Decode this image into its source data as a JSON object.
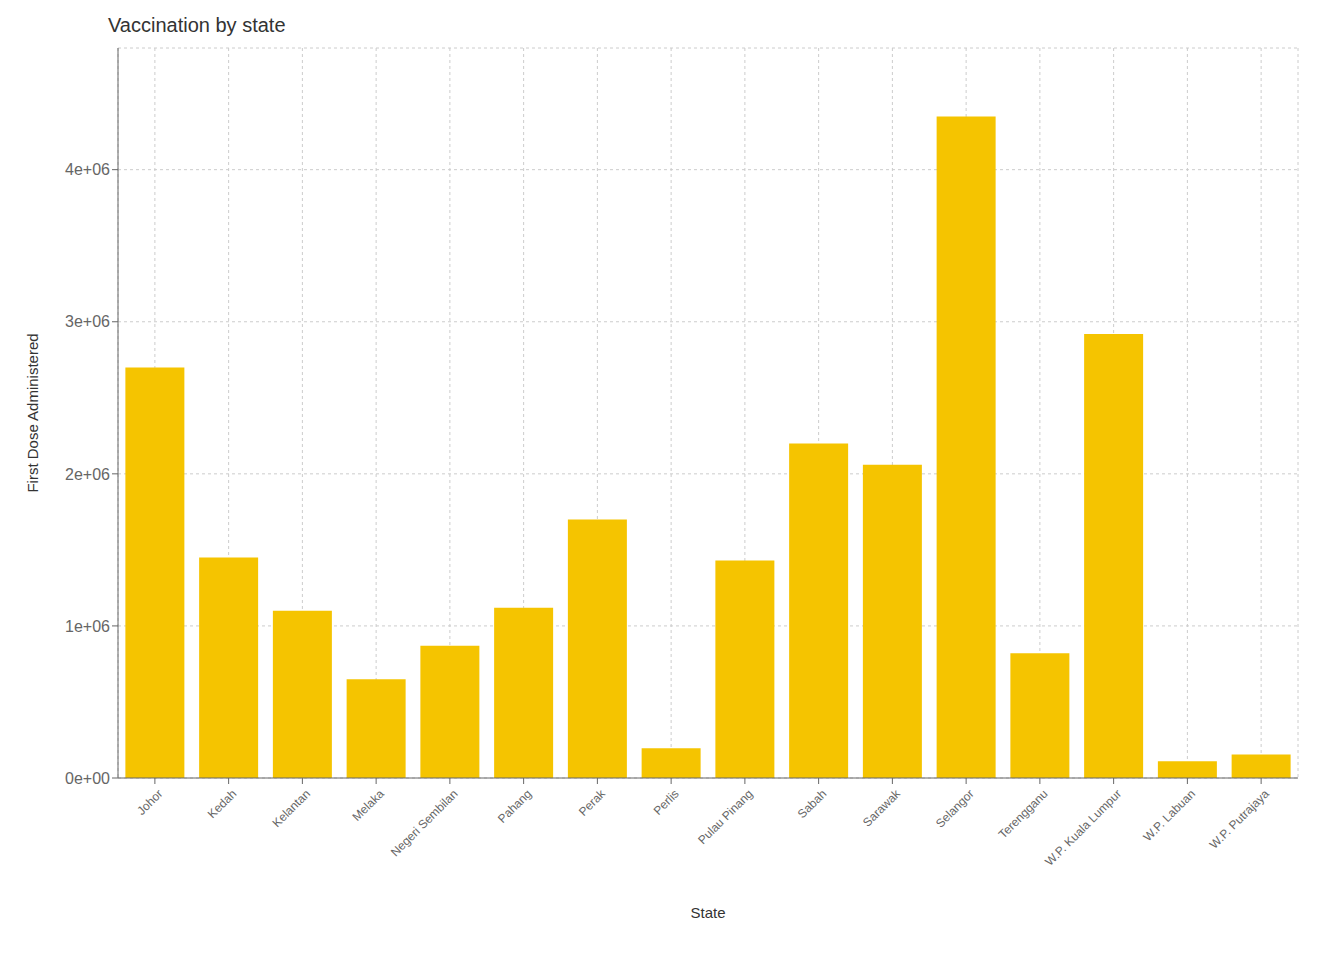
{
  "chart_data": {
    "type": "bar",
    "title": "Vaccination by state",
    "xlabel": "State",
    "ylabel": "First Dose Administered",
    "categories": [
      "Johor",
      "Kedah",
      "Kelantan",
      "Melaka",
      "Negeri Sembilan",
      "Pahang",
      "Perak",
      "Perlis",
      "Pulau Pinang",
      "Sabah",
      "Sarawak",
      "Selangor",
      "Terengganu",
      "W.P. Kuala Lumpur",
      "W.P. Labuan",
      "W.P. Putrajaya"
    ],
    "values": [
      2700000,
      1450000,
      1100000,
      650000,
      870000,
      1120000,
      1700000,
      195000,
      1430000,
      2200000,
      2060000,
      4350000,
      820000,
      2920000,
      110000,
      155000
    ],
    "color": "#F5C400",
    "ylim": [
      0,
      4800000
    ],
    "yticks": [
      {
        "value": 0,
        "label": "0e+00"
      },
      {
        "value": 1000000,
        "label": "1e+06"
      },
      {
        "value": 2000000,
        "label": "2e+06"
      },
      {
        "value": 3000000,
        "label": "3e+06"
      },
      {
        "value": 4000000,
        "label": "4e+06"
      }
    ],
    "grid": true
  }
}
